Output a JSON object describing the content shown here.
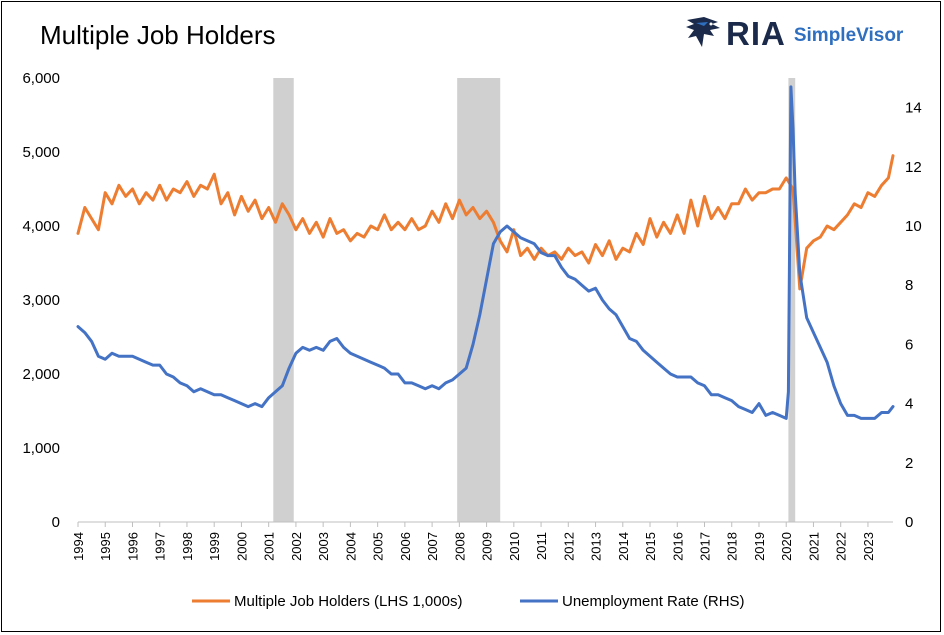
{
  "title": "Multiple Job Holders",
  "logo": {
    "brand": "RIA",
    "product": "SimpleVisor",
    "icon": "eagle-icon"
  },
  "chart_data": {
    "type": "line",
    "title": "Multiple Job Holders",
    "x_range": [
      1994.0,
      2023.92
    ],
    "x_ticks": [
      "1994",
      "1995",
      "1996",
      "1997",
      "1998",
      "1999",
      "2000",
      "2001",
      "2002",
      "2003",
      "2004",
      "2005",
      "2006",
      "2007",
      "2008",
      "2009",
      "2010",
      "2011",
      "2012",
      "2013",
      "2014",
      "2015",
      "2016",
      "2017",
      "2018",
      "2019",
      "2020",
      "2021",
      "2022",
      "2023"
    ],
    "y_left": {
      "range": [
        0,
        6000
      ],
      "ticks": [
        0,
        1000,
        2000,
        3000,
        4000,
        5000,
        6000
      ],
      "tick_labels": [
        "0",
        "1,000",
        "2,000",
        "3,000",
        "4,000",
        "5,000",
        "6,000"
      ]
    },
    "y_right": {
      "range": [
        0,
        15
      ],
      "ticks": [
        0,
        2,
        4,
        6,
        8,
        10,
        12,
        14
      ],
      "tick_labels": [
        "0",
        "2",
        "4",
        "6",
        "8",
        "10",
        "12",
        "14"
      ]
    },
    "grid": false,
    "legend_position": "bottom",
    "recessions": [
      [
        2001.17,
        2001.92
      ],
      [
        2007.92,
        2009.5
      ],
      [
        2020.08,
        2020.33
      ]
    ],
    "series": [
      {
        "name": "Multiple Job Holders (LHS 1,000s)",
        "axis": "left",
        "color": "#ed7d31",
        "x": [
          1994.0,
          1994.25,
          1994.5,
          1994.75,
          1995.0,
          1995.25,
          1995.5,
          1995.75,
          1996.0,
          1996.25,
          1996.5,
          1996.75,
          1997.0,
          1997.25,
          1997.5,
          1997.75,
          1998.0,
          1998.25,
          1998.5,
          1998.75,
          1999.0,
          1999.25,
          1999.5,
          1999.75,
          2000.0,
          2000.25,
          2000.5,
          2000.75,
          2001.0,
          2001.25,
          2001.5,
          2001.75,
          2002.0,
          2002.25,
          2002.5,
          2002.75,
          2003.0,
          2003.25,
          2003.5,
          2003.75,
          2004.0,
          2004.25,
          2004.5,
          2004.75,
          2005.0,
          2005.25,
          2005.5,
          2005.75,
          2006.0,
          2006.25,
          2006.5,
          2006.75,
          2007.0,
          2007.25,
          2007.5,
          2007.75,
          2008.0,
          2008.25,
          2008.5,
          2008.75,
          2009.0,
          2009.25,
          2009.5,
          2009.75,
          2010.0,
          2010.25,
          2010.5,
          2010.75,
          2011.0,
          2011.25,
          2011.5,
          2011.75,
          2012.0,
          2012.25,
          2012.5,
          2012.75,
          2013.0,
          2013.25,
          2013.5,
          2013.75,
          2014.0,
          2014.25,
          2014.5,
          2014.75,
          2015.0,
          2015.25,
          2015.5,
          2015.75,
          2016.0,
          2016.25,
          2016.5,
          2016.75,
          2017.0,
          2017.25,
          2017.5,
          2017.75,
          2018.0,
          2018.25,
          2018.5,
          2018.75,
          2019.0,
          2019.25,
          2019.5,
          2019.75,
          2020.0,
          2020.25,
          2020.5,
          2020.75,
          2021.0,
          2021.25,
          2021.5,
          2021.75,
          2022.0,
          2022.25,
          2022.5,
          2022.75,
          2023.0,
          2023.25,
          2023.5,
          2023.75,
          2023.92
        ],
        "values": [
          3900,
          4250,
          4100,
          3950,
          4450,
          4300,
          4550,
          4400,
          4500,
          4300,
          4450,
          4350,
          4550,
          4350,
          4500,
          4450,
          4600,
          4400,
          4550,
          4500,
          4700,
          4300,
          4450,
          4150,
          4400,
          4200,
          4350,
          4100,
          4250,
          4050,
          4300,
          4150,
          3950,
          4100,
          3900,
          4050,
          3850,
          4100,
          3900,
          3950,
          3800,
          3900,
          3850,
          4000,
          3950,
          4150,
          3950,
          4050,
          3950,
          4100,
          3950,
          4000,
          4200,
          4050,
          4300,
          4100,
          4350,
          4150,
          4250,
          4100,
          4200,
          4050,
          3800,
          3650,
          3950,
          3600,
          3700,
          3550,
          3700,
          3600,
          3650,
          3550,
          3700,
          3600,
          3650,
          3500,
          3750,
          3600,
          3800,
          3550,
          3700,
          3650,
          3900,
          3750,
          4100,
          3850,
          4050,
          3900,
          4150,
          3900,
          4350,
          4000,
          4400,
          4100,
          4250,
          4100,
          4300,
          4300,
          4500,
          4350,
          4450,
          4450,
          4500,
          4500,
          4650,
          4500,
          3150,
          3700,
          3800,
          3850,
          4000,
          3950,
          4050,
          4150,
          4300,
          4250,
          4450,
          4400,
          4550,
          4650,
          4950
        ]
      },
      {
        "name": "Unemployment Rate (RHS)",
        "axis": "right",
        "color": "#4472c4",
        "x": [
          1994.0,
          1994.25,
          1994.5,
          1994.75,
          1995.0,
          1995.25,
          1995.5,
          1995.75,
          1996.0,
          1996.25,
          1996.5,
          1996.75,
          1997.0,
          1997.25,
          1997.5,
          1997.75,
          1998.0,
          1998.25,
          1998.5,
          1998.75,
          1999.0,
          1999.25,
          1999.5,
          1999.75,
          2000.0,
          2000.25,
          2000.5,
          2000.75,
          2001.0,
          2001.25,
          2001.5,
          2001.75,
          2002.0,
          2002.25,
          2002.5,
          2002.75,
          2003.0,
          2003.25,
          2003.5,
          2003.75,
          2004.0,
          2004.25,
          2004.5,
          2004.75,
          2005.0,
          2005.25,
          2005.5,
          2005.75,
          2006.0,
          2006.25,
          2006.5,
          2006.75,
          2007.0,
          2007.25,
          2007.5,
          2007.75,
          2008.0,
          2008.25,
          2008.5,
          2008.75,
          2009.0,
          2009.25,
          2009.5,
          2009.75,
          2010.0,
          2010.25,
          2010.5,
          2010.75,
          2011.0,
          2011.25,
          2011.5,
          2011.75,
          2012.0,
          2012.25,
          2012.5,
          2012.75,
          2013.0,
          2013.25,
          2013.5,
          2013.75,
          2014.0,
          2014.25,
          2014.5,
          2014.75,
          2015.0,
          2015.25,
          2015.5,
          2015.75,
          2016.0,
          2016.25,
          2016.5,
          2016.75,
          2017.0,
          2017.25,
          2017.5,
          2017.75,
          2018.0,
          2018.25,
          2018.5,
          2018.75,
          2019.0,
          2019.25,
          2019.5,
          2019.75,
          2020.0,
          2020.08,
          2020.17,
          2020.25,
          2020.33,
          2020.5,
          2020.75,
          2021.0,
          2021.25,
          2021.5,
          2021.75,
          2022.0,
          2022.25,
          2022.5,
          2022.75,
          2023.0,
          2023.25,
          2023.5,
          2023.75,
          2023.92
        ],
        "values": [
          6.6,
          6.4,
          6.1,
          5.6,
          5.5,
          5.7,
          5.6,
          5.6,
          5.6,
          5.5,
          5.4,
          5.3,
          5.3,
          5.0,
          4.9,
          4.7,
          4.6,
          4.4,
          4.5,
          4.4,
          4.3,
          4.3,
          4.2,
          4.1,
          4.0,
          3.9,
          4.0,
          3.9,
          4.2,
          4.4,
          4.6,
          5.2,
          5.7,
          5.9,
          5.8,
          5.9,
          5.8,
          6.1,
          6.2,
          5.9,
          5.7,
          5.6,
          5.5,
          5.4,
          5.3,
          5.2,
          5.0,
          5.0,
          4.7,
          4.7,
          4.6,
          4.5,
          4.6,
          4.5,
          4.7,
          4.8,
          5.0,
          5.2,
          6.0,
          7.0,
          8.2,
          9.4,
          9.8,
          10.0,
          9.8,
          9.6,
          9.5,
          9.4,
          9.1,
          9.0,
          9.0,
          8.6,
          8.3,
          8.2,
          8.0,
          7.8,
          7.9,
          7.5,
          7.2,
          7.0,
          6.6,
          6.2,
          6.1,
          5.8,
          5.6,
          5.4,
          5.2,
          5.0,
          4.9,
          4.9,
          4.9,
          4.7,
          4.6,
          4.3,
          4.3,
          4.2,
          4.1,
          3.9,
          3.8,
          3.7,
          4.0,
          3.6,
          3.7,
          3.6,
          3.5,
          4.4,
          14.7,
          13.3,
          11.1,
          8.4,
          6.9,
          6.4,
          5.9,
          5.4,
          4.6,
          4.0,
          3.6,
          3.6,
          3.5,
          3.5,
          3.5,
          3.7,
          3.7,
          3.9
        ]
      }
    ]
  }
}
